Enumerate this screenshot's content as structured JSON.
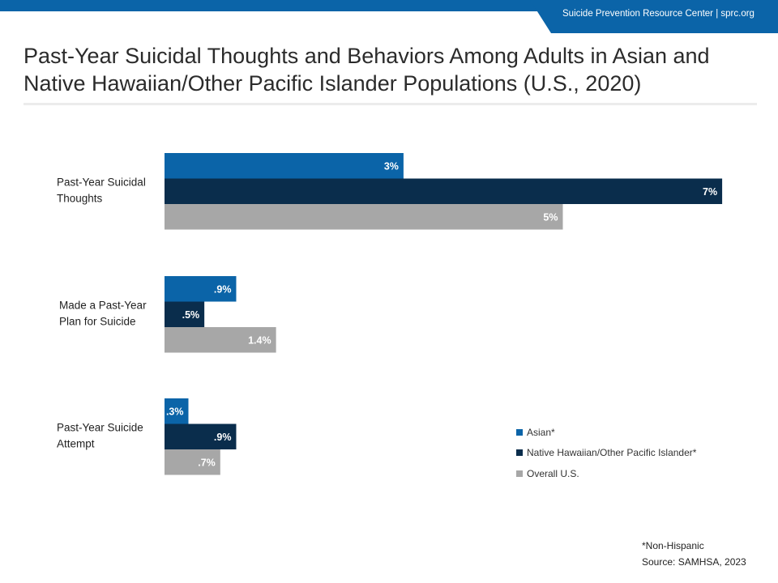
{
  "header": {
    "org_text": "Suicide Prevention Resource Center  |  sprc.org",
    "title": "Past-Year Suicidal Thoughts and Behaviors Among Adults in Asian and Native Hawaiian/Other Pacific Islander Populations (U.S., 2020)"
  },
  "colors": {
    "brand_blue": "#0b64a8",
    "asian": "#0b64a8",
    "nhopi": "#0a2d4c",
    "overall": "#a7a7a7"
  },
  "chart_data": {
    "type": "bar",
    "orientation": "horizontal",
    "categories": [
      [
        "Past-Year Suicidal",
        "Thoughts"
      ],
      [
        "Made a Past-Year",
        "Plan for Suicide"
      ],
      [
        "Past-Year Suicide",
        "Attempt"
      ]
    ],
    "series": [
      {
        "name": "Asian*",
        "values": [
          3,
          0.9,
          0.3
        ],
        "labels": [
          "3%",
          ".9%",
          ".3%"
        ],
        "color": "#0b64a8"
      },
      {
        "name": "Native Hawaiian/Other Pacific Islander*",
        "values": [
          7,
          0.5,
          0.9
        ],
        "labels": [
          "7%",
          ".5%",
          ".9%"
        ],
        "color": "#0a2d4c"
      },
      {
        "name": "Overall U.S.",
        "values": [
          5,
          1.4,
          0.7
        ],
        "labels": [
          "5%",
          "1.4%",
          ".7%"
        ],
        "color": "#a7a7a7"
      }
    ],
    "xlim": [
      0,
      7
    ],
    "grid": false,
    "legend_position": "bottom-right"
  },
  "legend": {
    "items": [
      {
        "label": "Asian*",
        "color": "#0b64a8"
      },
      {
        "label": "Native Hawaiian/Other Pacific Islander*",
        "color": "#0a2d4c"
      },
      {
        "label": "Overall U.S.",
        "color": "#a7a7a7"
      }
    ]
  },
  "footnote": {
    "note": "*Non-Hispanic",
    "source": "Source: SAMHSA, 2023"
  }
}
